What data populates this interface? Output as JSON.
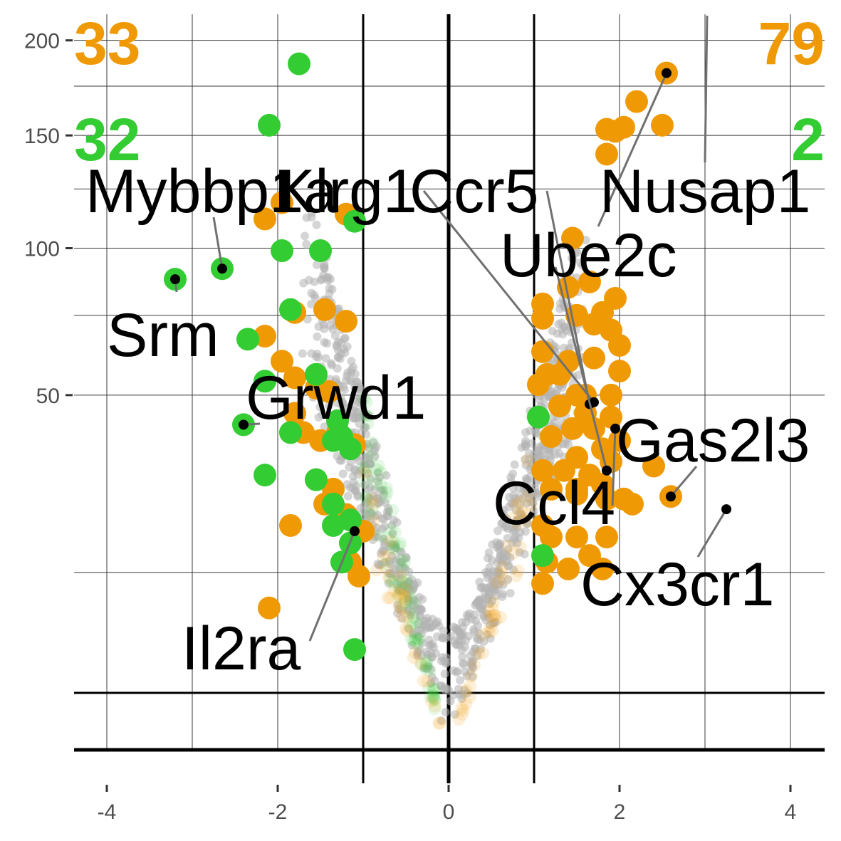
{
  "chart_data": {
    "type": "scatter",
    "title": "",
    "xlabel": "",
    "ylabel": "",
    "xlim": [
      -4.4,
      4.4
    ],
    "y_scale": "sqrt",
    "ylim": [
      0,
      215
    ],
    "x_ticks": [
      -4,
      -2,
      0,
      2,
      4
    ],
    "x_tick_labels": [
      "-4",
      "-2",
      "0",
      "2",
      "4"
    ],
    "y_ticks": [
      50,
      100,
      150,
      200
    ],
    "y_tick_labels": [
      "50",
      "100",
      "150",
      "200"
    ],
    "grid": true,
    "fold_change_thresholds": [
      -1,
      1
    ],
    "pvalue_threshold_y": 2,
    "colors": {
      "background_points": "#b3b3b3",
      "orange_series": "#ef9a05",
      "green_series": "#33cc33",
      "label_point": "#000000",
      "label_line": "#707070"
    },
    "corner_counts": [
      {
        "text": "33",
        "position": "top-left",
        "color": "#ef9a05"
      },
      {
        "text": "79",
        "position": "top-right",
        "color": "#ef9a05"
      },
      {
        "text": "32",
        "position": "upper-left",
        "color": "#33cc33"
      },
      {
        "text": "2",
        "position": "upper-right",
        "color": "#33cc33"
      }
    ],
    "orange_points": [
      [
        2.55,
        182
      ],
      [
        2.2,
        167
      ],
      [
        2.5,
        155
      ],
      [
        1.85,
        153
      ],
      [
        1.95,
        152
      ],
      [
        2.05,
        154
      ],
      [
        1.85,
        141
      ],
      [
        -1.95,
        119
      ],
      [
        -2.15,
        112
      ],
      [
        -1.2,
        114
      ],
      [
        1.45,
        104
      ],
      [
        1.65,
        87
      ],
      [
        1.4,
        85
      ],
      [
        1.95,
        81
      ],
      [
        1.1,
        79
      ],
      [
        1.5,
        75
      ],
      [
        1.8,
        76
      ],
      [
        1.1,
        74
      ],
      [
        1.7,
        72
      ],
      [
        1.9,
        70
      ],
      [
        2.0,
        65
      ],
      [
        1.1,
        63
      ],
      [
        1.4,
        60
      ],
      [
        1.7,
        61
      ],
      [
        2.0,
        57
      ],
      [
        1.15,
        56
      ],
      [
        1.3,
        56
      ],
      [
        1.9,
        50
      ],
      [
        1.5,
        50
      ],
      [
        1.05,
        53
      ],
      [
        1.6,
        50
      ],
      [
        1.3,
        47
      ],
      [
        1.6,
        45
      ],
      [
        1.9,
        44
      ],
      [
        1.7,
        41
      ],
      [
        1.45,
        41
      ],
      [
        1.2,
        39
      ],
      [
        2.0,
        38
      ],
      [
        1.8,
        36
      ],
      [
        1.5,
        34
      ],
      [
        1.9,
        33
      ],
      [
        1.1,
        31
      ],
      [
        1.65,
        30
      ],
      [
        1.35,
        31
      ],
      [
        2.4,
        32
      ],
      [
        1.8,
        28
      ],
      [
        1.5,
        27
      ],
      [
        1.2,
        27
      ],
      [
        2.05,
        25
      ],
      [
        1.85,
        25
      ],
      [
        2.15,
        24
      ],
      [
        1.5,
        26
      ],
      [
        1.1,
        20
      ],
      [
        1.2,
        18
      ],
      [
        1.5,
        18
      ],
      [
        1.85,
        18
      ],
      [
        1.65,
        15
      ],
      [
        1.15,
        14
      ],
      [
        1.4,
        13
      ],
      [
        1.8,
        13
      ],
      [
        1.1,
        11
      ],
      [
        2.6,
        25.5
      ],
      [
        -1.8,
        76
      ],
      [
        -1.45,
        77
      ],
      [
        -1.2,
        73
      ],
      [
        -2.15,
        68
      ],
      [
        -1.95,
        60
      ],
      [
        -1.8,
        55
      ],
      [
        -1.55,
        52
      ],
      [
        -1.4,
        51
      ],
      [
        -1.8,
        45
      ],
      [
        -1.7,
        40
      ],
      [
        -1.3,
        40
      ],
      [
        -1.5,
        38
      ],
      [
        -1.1,
        37
      ],
      [
        -1.55,
        29
      ],
      [
        -1.35,
        27
      ],
      [
        -1.45,
        24
      ],
      [
        -1.2,
        22
      ],
      [
        -1.0,
        19
      ],
      [
        -1.85,
        20
      ],
      [
        -1.15,
        14
      ],
      [
        -1.05,
        12
      ],
      [
        -2.1,
        8
      ]
    ],
    "green_points": [
      [
        -1.75,
        187
      ],
      [
        -2.1,
        155
      ],
      [
        -1.1,
        111
      ],
      [
        -1.95,
        99
      ],
      [
        -1.5,
        99
      ],
      [
        -2.65,
        92
      ],
      [
        -3.2,
        88
      ],
      [
        -1.85,
        77
      ],
      [
        -2.35,
        67
      ],
      [
        -1.55,
        56
      ],
      [
        -2.15,
        54
      ],
      [
        -2.4,
        42
      ],
      [
        -1.3,
        43
      ],
      [
        -1.35,
        38
      ],
      [
        -1.15,
        36
      ],
      [
        -1.25,
        39
      ],
      [
        -1.85,
        40
      ],
      [
        -2.15,
        30
      ],
      [
        -1.55,
        29
      ],
      [
        -1.35,
        24
      ],
      [
        -1.15,
        21
      ],
      [
        -1.35,
        20
      ],
      [
        -1.15,
        17
      ],
      [
        -1.25,
        14
      ],
      [
        -1.1,
        4
      ],
      [
        1.05,
        44
      ],
      [
        1.1,
        15
      ]
    ],
    "labeled_genes": [
      {
        "name": "Mybbp1a",
        "x": -2.65,
        "y": 92
      },
      {
        "name": "Klrg1",
        "x": 1.7,
        "y": 48
      },
      {
        "name": "Ccr5",
        "x": 1.65,
        "y": 47.5
      },
      {
        "name": "Nusap1",
        "x": 2.55,
        "y": 182
      },
      {
        "name": "Ube2c",
        "x": 1.85,
        "y": 31
      },
      {
        "name": "Srm",
        "x": -3.2,
        "y": 88
      },
      {
        "name": "Grwd1",
        "x": -2.4,
        "y": 42
      },
      {
        "name": "Gas2l3",
        "x": 2.6,
        "y": 25.5
      },
      {
        "name": "Ccl4",
        "x": 1.95,
        "y": 41
      },
      {
        "name": "Cx3cr1",
        "x": 3.25,
        "y": 23
      },
      {
        "name": "Il2ra",
        "x": -1.1,
        "y": 19
      }
    ]
  }
}
